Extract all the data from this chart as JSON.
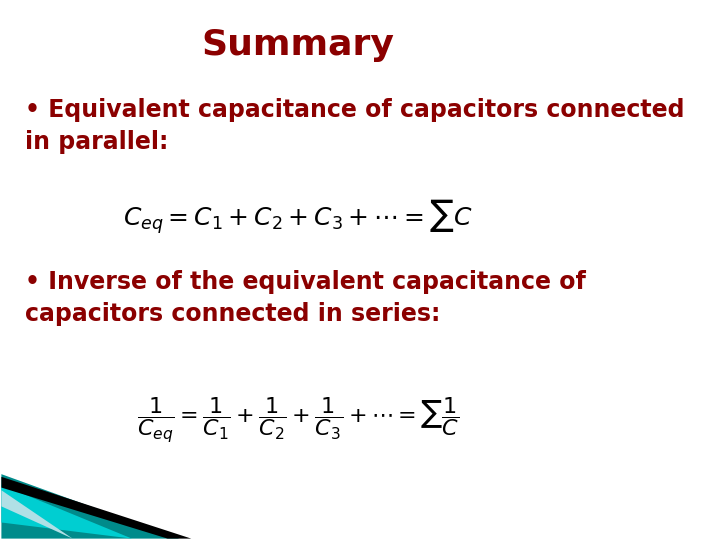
{
  "title": "Summary",
  "title_color": "#8B0000",
  "title_fontsize": 26,
  "title_bold": true,
  "bg_color": "#FFFFFF",
  "bullet1_text": "• Equivalent capacitance of capacitors connected\nin parallel:",
  "bullet2_text": "• Inverse of the equivalent capacitance of\ncapacitors connected in series:",
  "bullet_color": "#8B0000",
  "bullet_fontsize": 17,
  "bullet_bold": true,
  "formula1": "$C_{eq} = C_1 + C_2 + C_3 + \\cdots = \\sum C$",
  "formula2": "$\\dfrac{1}{C_{eq}} = \\dfrac{1}{C_1} + \\dfrac{1}{C_2} + \\dfrac{1}{C_3} + \\cdots = \\sum\\dfrac{1}{C}$",
  "formula_color": "#000000",
  "formula1_fontsize": 18,
  "formula2_fontsize": 16,
  "decoration_colors": [
    "#008B8B",
    "#00CED1",
    "#B0E0E6",
    "#000000"
  ],
  "fig_width": 7.2,
  "fig_height": 5.4
}
